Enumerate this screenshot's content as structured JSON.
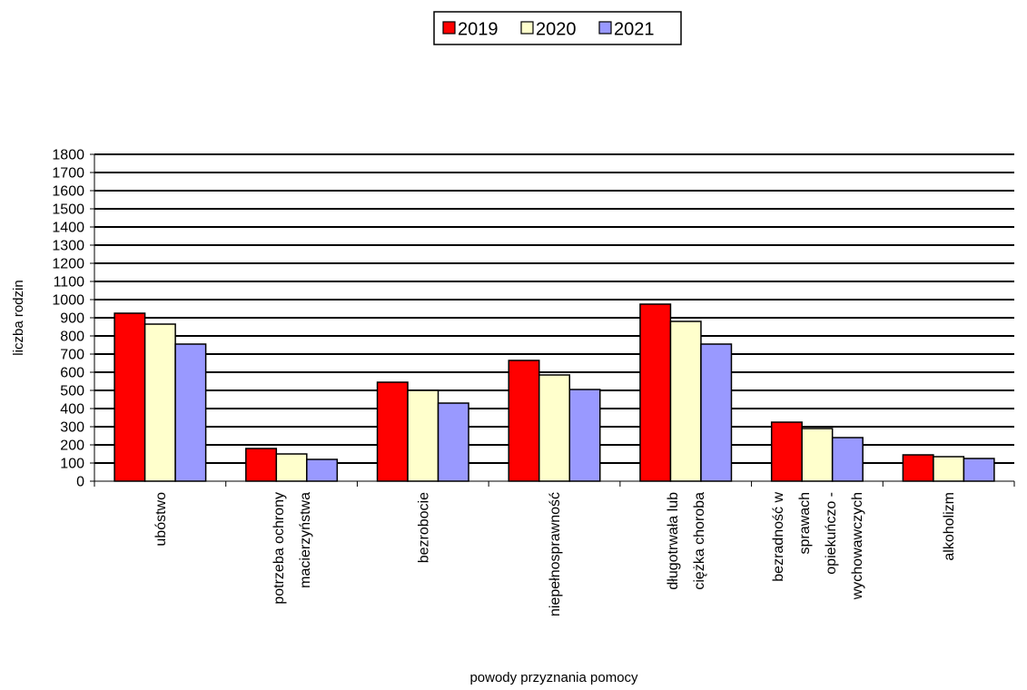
{
  "chart_data": {
    "type": "bar",
    "title": "",
    "xlabel": "powody przyznania pomocy",
    "ylabel": "liczba rodzin",
    "ylim": [
      0,
      1800
    ],
    "ytick_step": 100,
    "grid": true,
    "legend_position": "top-center",
    "categories": [
      [
        "ubóstwo"
      ],
      [
        "potrzeba ochrony",
        "macierzyństwa"
      ],
      [
        "bezrobocie"
      ],
      [
        "niepełnosprawność"
      ],
      [
        "długotrwała lub",
        "ciężka choroba"
      ],
      [
        "bezradność w",
        "sprawach",
        "opiekuńczo -",
        "wychowawczych"
      ],
      [
        "alkoholizm"
      ]
    ],
    "series": [
      {
        "name": "2019",
        "color": "#ff0000",
        "values": [
          925,
          180,
          545,
          665,
          975,
          325,
          145
        ]
      },
      {
        "name": "2020",
        "color": "#ffffcc",
        "values": [
          865,
          150,
          500,
          585,
          880,
          290,
          135
        ]
      },
      {
        "name": "2021",
        "color": "#9999ff",
        "values": [
          755,
          120,
          430,
          505,
          755,
          240,
          125
        ]
      }
    ]
  }
}
